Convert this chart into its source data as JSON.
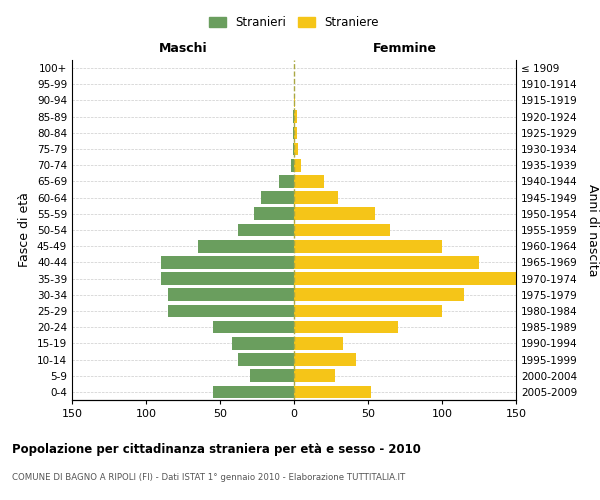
{
  "age_groups": [
    "0-4",
    "5-9",
    "10-14",
    "15-19",
    "20-24",
    "25-29",
    "30-34",
    "35-39",
    "40-44",
    "45-49",
    "50-54",
    "55-59",
    "60-64",
    "65-69",
    "70-74",
    "75-79",
    "80-84",
    "85-89",
    "90-94",
    "95-99",
    "100+"
  ],
  "birth_years": [
    "2005-2009",
    "2000-2004",
    "1995-1999",
    "1990-1994",
    "1985-1989",
    "1980-1984",
    "1975-1979",
    "1970-1974",
    "1965-1969",
    "1960-1964",
    "1955-1959",
    "1950-1954",
    "1945-1949",
    "1940-1944",
    "1935-1939",
    "1930-1934",
    "1925-1929",
    "1920-1924",
    "1915-1919",
    "1910-1914",
    "≤ 1909"
  ],
  "males": [
    55,
    30,
    38,
    42,
    55,
    85,
    85,
    90,
    90,
    65,
    38,
    27,
    22,
    10,
    2,
    1,
    1,
    1,
    0,
    0,
    0
  ],
  "females": [
    52,
    28,
    42,
    33,
    70,
    100,
    115,
    150,
    125,
    100,
    65,
    55,
    30,
    20,
    5,
    3,
    2,
    2,
    1,
    0,
    0
  ],
  "male_color": "#6a9e5e",
  "female_color": "#f5c518",
  "background_color": "#ffffff",
  "grid_color": "#cccccc",
  "title": "Popolazione per cittadinanza straniera per età e sesso - 2010",
  "subtitle": "COMUNE DI BAGNO A RIPOLI (FI) - Dati ISTAT 1° gennaio 2010 - Elaborazione TUTTITALIA.IT",
  "xlabel_left": "Maschi",
  "xlabel_right": "Femmine",
  "ylabel_left": "Fasce di età",
  "ylabel_right": "Anni di nascita",
  "legend_male": "Stranieri",
  "legend_female": "Straniere",
  "xlim": 150
}
